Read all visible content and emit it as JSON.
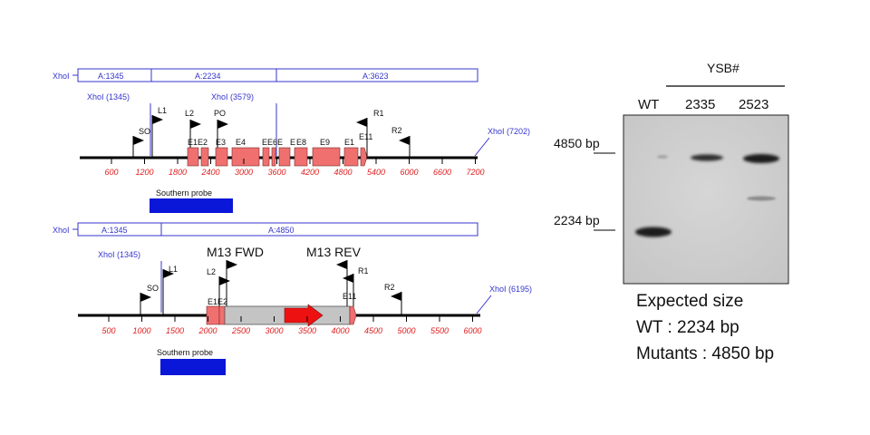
{
  "top_map": {
    "fragment_bar": {
      "left_label": "XhoI",
      "segments": [
        "A:1345",
        "A:2234",
        "A:3623"
      ]
    },
    "sites": [
      "XhoI (1345)",
      "XhoI (3579)",
      "XhoI (7202)"
    ],
    "primers": [
      "SO",
      "L1",
      "L2",
      "PO",
      "R1",
      "R2"
    ],
    "exons": [
      "E1",
      "E2",
      "E3",
      "E4",
      "E5",
      "E6",
      "E7",
      "E8",
      "E9",
      "E10",
      "E11"
    ],
    "exon_label_text": [
      "E1E2",
      "E3",
      "E4",
      "EE6E",
      "E",
      "E8",
      "E9",
      "E1",
      "E11"
    ],
    "ticks": [
      600,
      1200,
      1800,
      2400,
      3000,
      3600,
      4200,
      4800,
      5400,
      6000,
      6600,
      7200
    ],
    "probe_label": "Southern probe"
  },
  "bottom_map": {
    "fragment_bar": {
      "left_label": "XhoI",
      "segments": [
        "A:1345",
        "A:4850"
      ]
    },
    "sites": [
      "XhoI (1345)",
      "XhoI (6195)"
    ],
    "primers": [
      "SO",
      "L1",
      "L2",
      "M13 FWD",
      "M13 REV",
      "R1",
      "R2"
    ],
    "exons": [
      "E1",
      "E2",
      "E11"
    ],
    "exon_label_text": [
      "E1E2",
      "E11"
    ],
    "ticks": [
      500,
      1000,
      1500,
      2000,
      2500,
      3000,
      3500,
      4000,
      4500,
      5000,
      5500,
      6000
    ],
    "probe_label": "Southern probe"
  },
  "gel": {
    "group_label": "YSB#",
    "lanes": [
      "WT",
      "2335",
      "2523"
    ],
    "markers": [
      "4850 bp",
      "2234 bp"
    ]
  },
  "expected": {
    "title": "Expected size",
    "lines": [
      "WT : 2234 bp",
      "Mutants : 4850 bp"
    ]
  },
  "colors": {
    "blue": "#3535cf",
    "exon": "#f07070",
    "tick_text": "#e02020",
    "probe": "#0a16d8",
    "cassette": "#c4c4c4",
    "arrow": "#ee1111",
    "gel_bg": "#d0d0d0"
  }
}
